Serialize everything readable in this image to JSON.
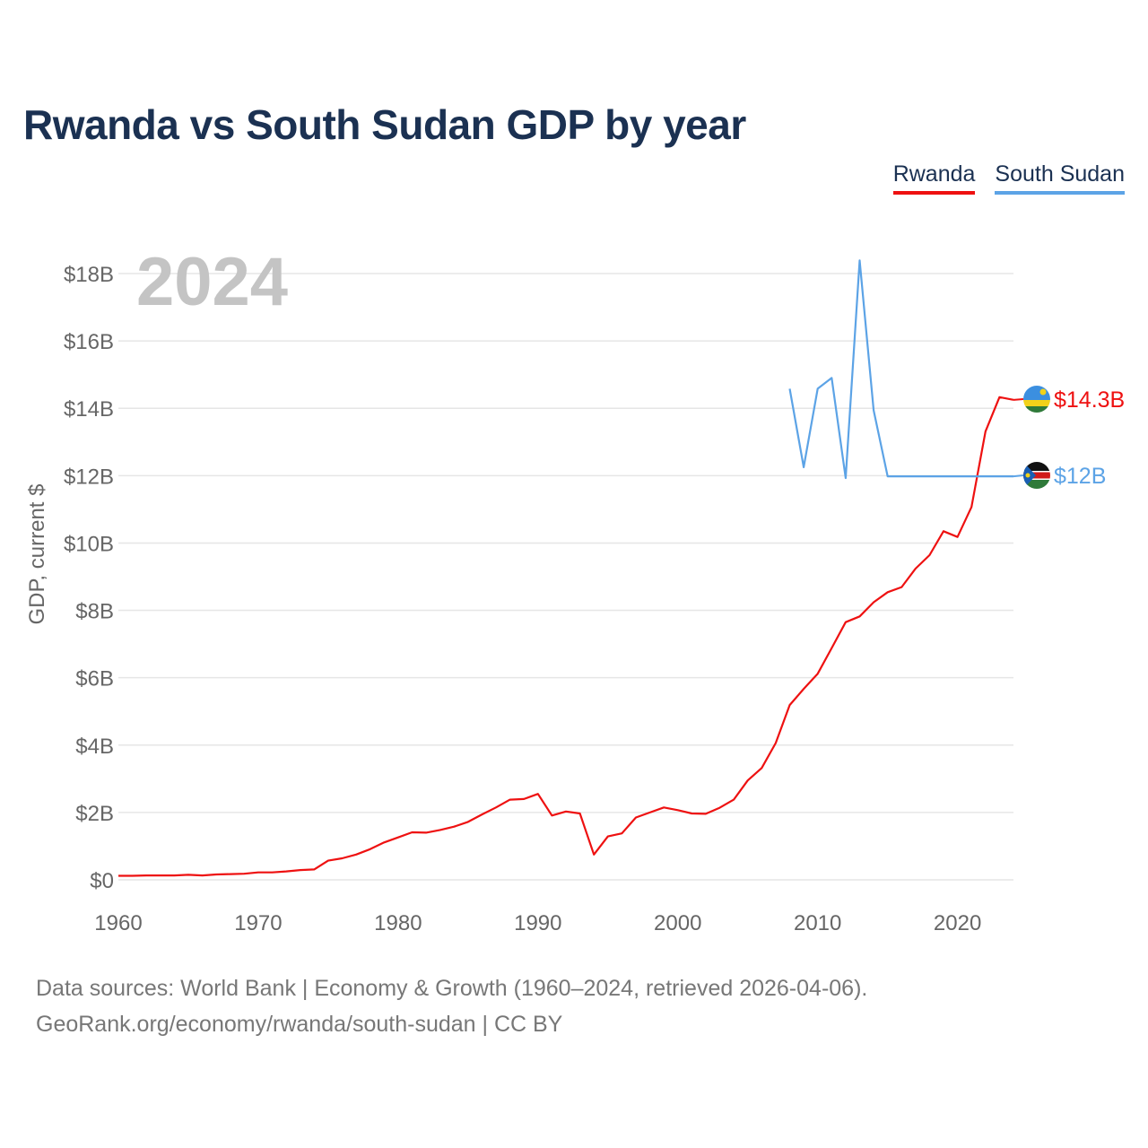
{
  "title": "Rwanda vs South Sudan GDP by year",
  "legend": [
    {
      "name": "Rwanda",
      "color": "#ee1111"
    },
    {
      "name": "South Sudan",
      "color": "#5ca3e6"
    }
  ],
  "year_label": "2024",
  "source_line1": "Data sources: World Bank | Economy & Growth (1960–2024, retrieved 2026-04-06).",
  "source_line2": "GeoRank.org/economy/rwanda/south-sudan | CC BY",
  "chart_data": {
    "type": "line",
    "title": "Rwanda vs South Sudan GDP by year",
    "xlabel": "",
    "ylabel": "GDP, current $",
    "xlim": [
      1960,
      2024
    ],
    "ylim": [
      0,
      18
    ],
    "y_unit": "billions USD",
    "x_ticks": [
      1960,
      1970,
      1980,
      1990,
      2000,
      2010,
      2020
    ],
    "x_tick_labels": [
      "1960",
      "1970",
      "1980",
      "1990",
      "2000",
      "2010",
      "2020"
    ],
    "y_ticks": [
      0,
      2,
      4,
      6,
      8,
      10,
      12,
      14,
      16,
      18
    ],
    "y_tick_labels": [
      "$0",
      "$2B",
      "$4B",
      "$6B",
      "$8B",
      "$10B",
      "$12B",
      "$14B",
      "$16B",
      "$18B"
    ],
    "grid": true,
    "legend_position": "top-right",
    "series": [
      {
        "name": "Rwanda",
        "color": "#ee1111",
        "end_label": "$14.3B",
        "x": [
          1960,
          1961,
          1962,
          1963,
          1964,
          1965,
          1966,
          1967,
          1968,
          1969,
          1970,
          1971,
          1972,
          1973,
          1974,
          1975,
          1976,
          1977,
          1978,
          1979,
          1980,
          1981,
          1982,
          1983,
          1984,
          1985,
          1986,
          1987,
          1988,
          1989,
          1990,
          1991,
          1992,
          1993,
          1994,
          1995,
          1996,
          1997,
          1998,
          1999,
          2000,
          2001,
          2002,
          2003,
          2004,
          2005,
          2006,
          2007,
          2008,
          2009,
          2010,
          2011,
          2012,
          2013,
          2014,
          2015,
          2016,
          2017,
          2018,
          2019,
          2020,
          2021,
          2022,
          2023,
          2024
        ],
        "values": [
          0.12,
          0.12,
          0.13,
          0.13,
          0.13,
          0.15,
          0.13,
          0.16,
          0.17,
          0.18,
          0.22,
          0.22,
          0.25,
          0.29,
          0.31,
          0.57,
          0.64,
          0.75,
          0.91,
          1.11,
          1.26,
          1.41,
          1.4,
          1.48,
          1.58,
          1.72,
          1.94,
          2.15,
          2.38,
          2.4,
          2.55,
          1.91,
          2.03,
          1.97,
          0.75,
          1.29,
          1.38,
          1.85,
          2.0,
          2.15,
          2.07,
          1.97,
          1.96,
          2.14,
          2.38,
          2.95,
          3.32,
          4.06,
          5.19,
          5.67,
          6.12,
          6.88,
          7.65,
          7.82,
          8.24,
          8.54,
          8.69,
          9.24,
          9.64,
          10.35,
          10.18,
          11.07,
          13.31,
          14.33,
          14.25
        ]
      },
      {
        "name": "South Sudan",
        "color": "#5ca3e6",
        "end_label": "$12B",
        "x": [
          2008,
          2009,
          2010,
          2011,
          2012,
          2013,
          2014,
          2015,
          2016,
          2017,
          2018,
          2019,
          2020,
          2021,
          2022,
          2023,
          2024
        ],
        "values": [
          14.58,
          12.25,
          14.58,
          14.9,
          11.93,
          18.39,
          13.94,
          11.98,
          11.98,
          11.98,
          11.98,
          11.98,
          11.98,
          11.98,
          11.98,
          11.98,
          11.98
        ]
      }
    ]
  }
}
